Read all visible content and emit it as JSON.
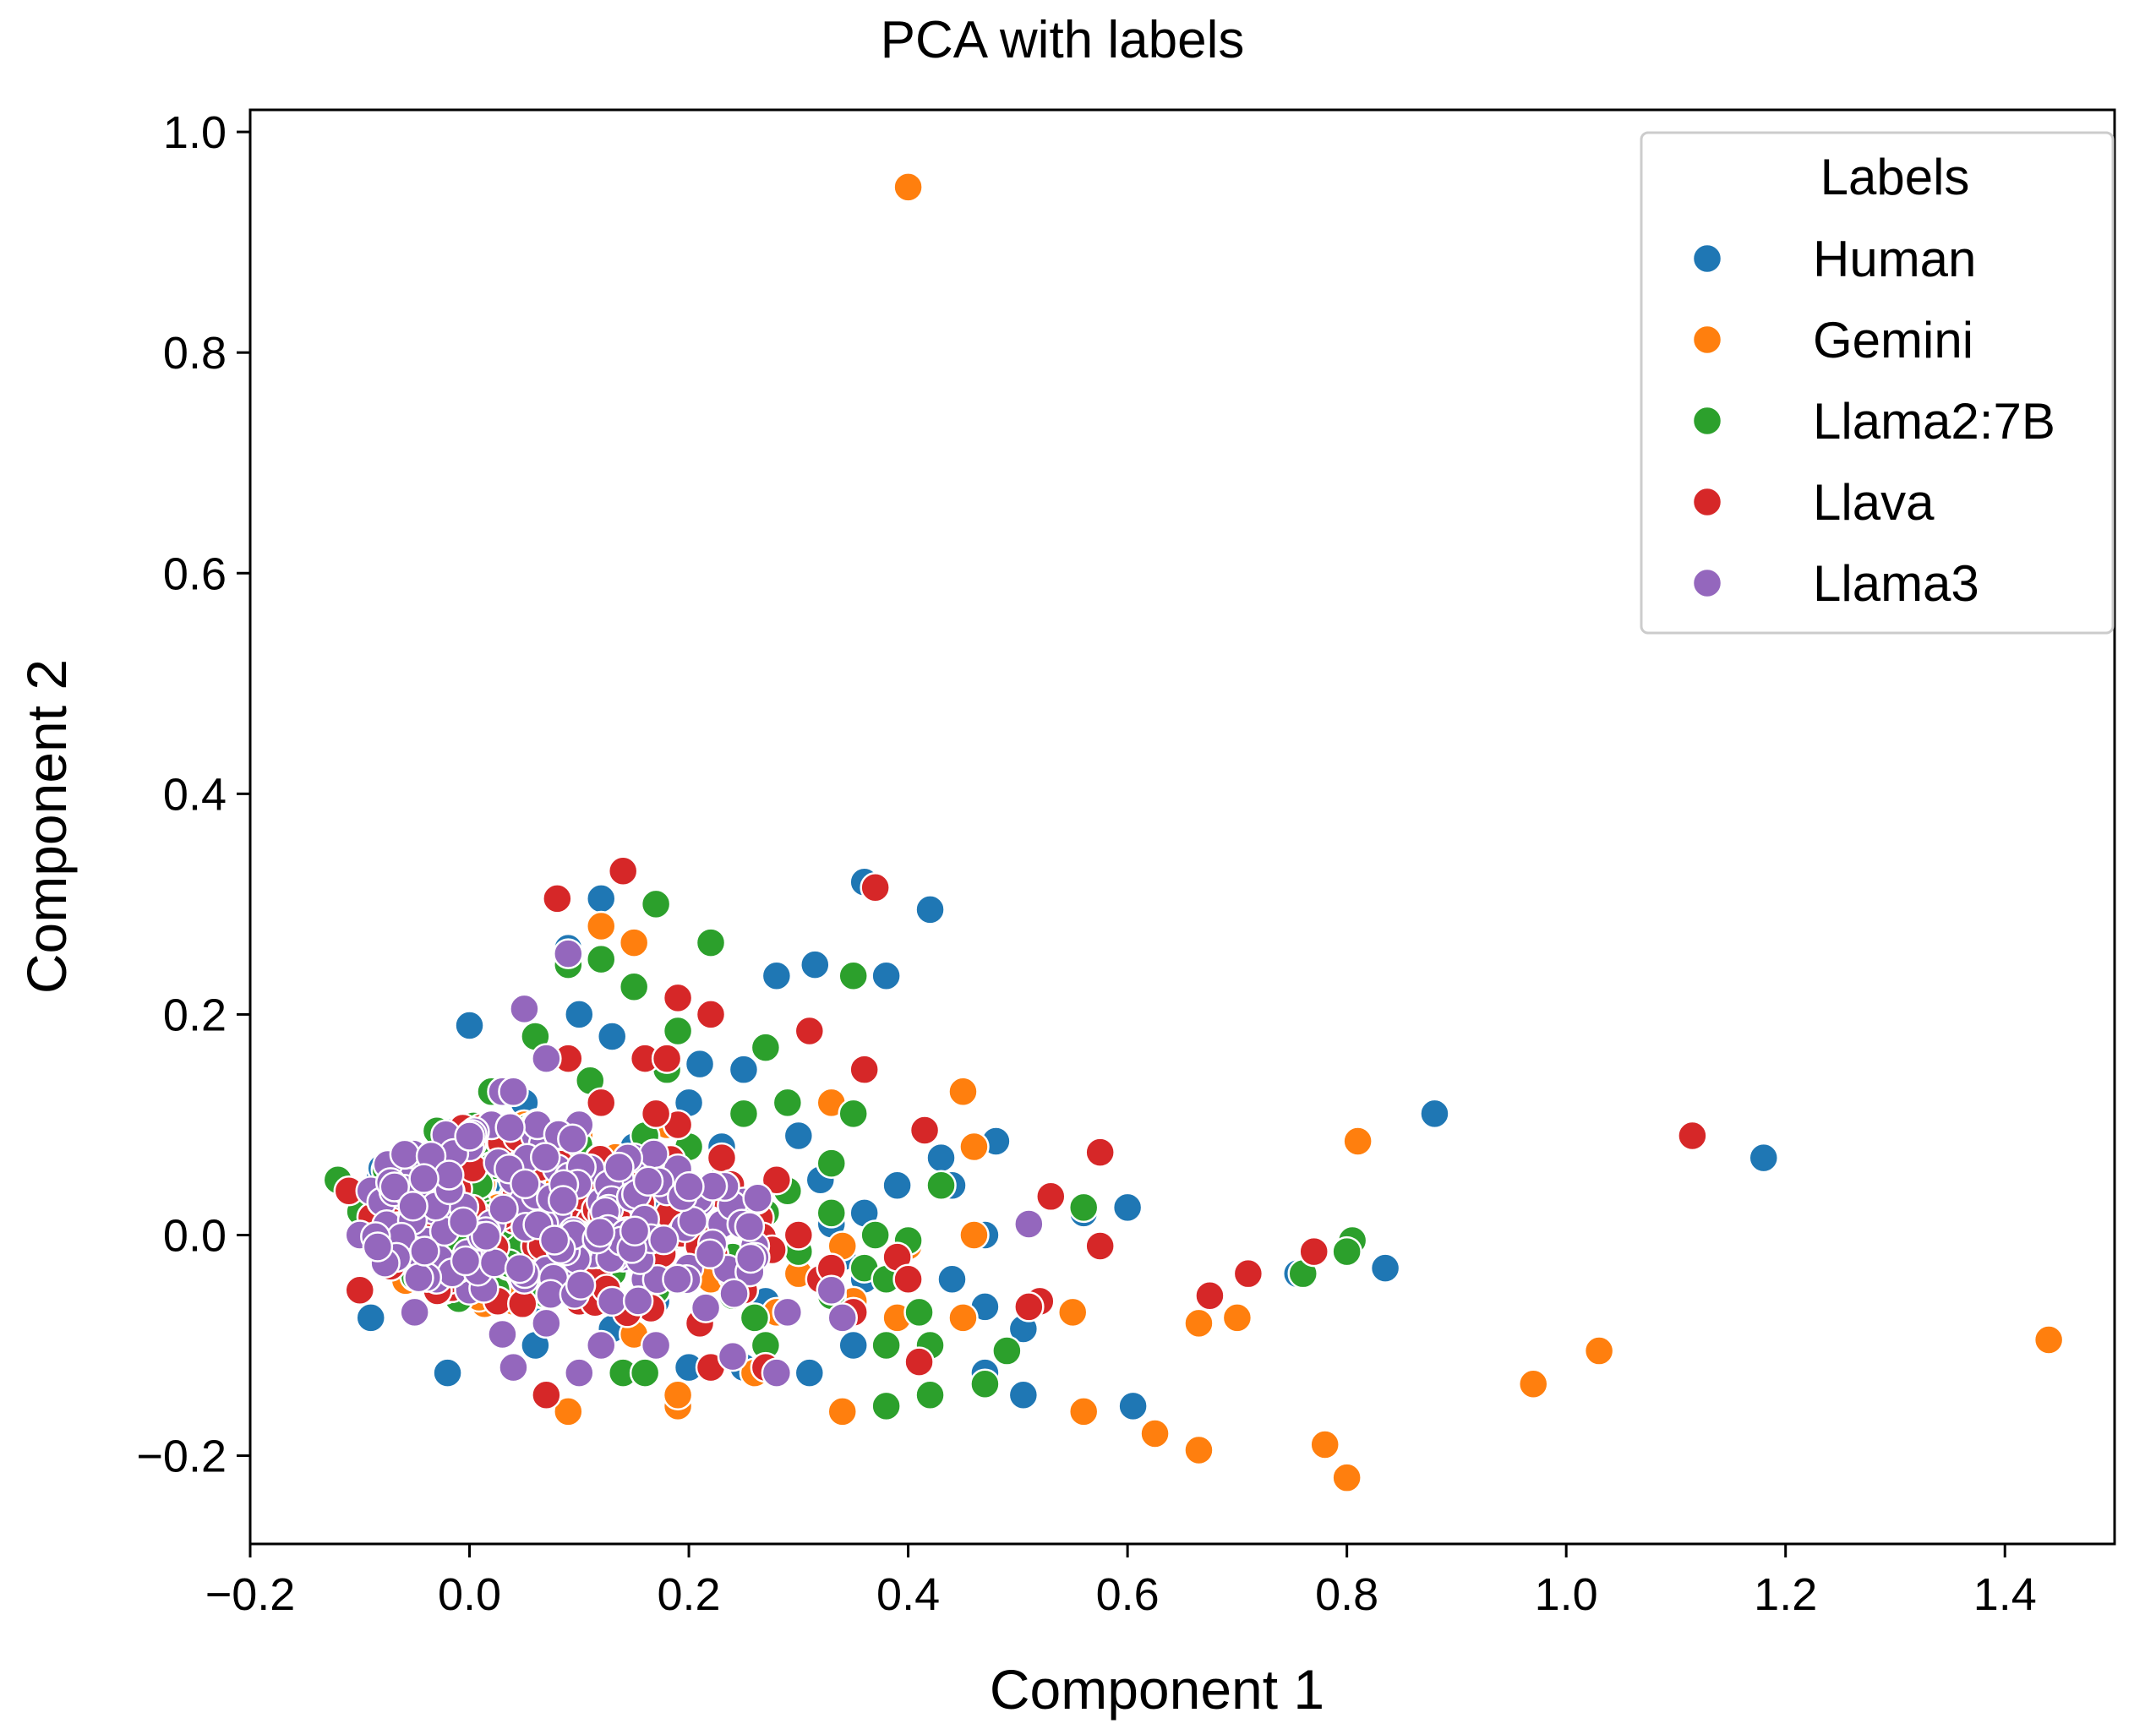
{
  "chart_data": {
    "type": "scatter",
    "title": "PCA with labels",
    "xlabel": "Component 1",
    "ylabel": "Component 2",
    "xlim": [
      -0.2,
      1.5
    ],
    "ylim": [
      -0.28,
      1.02
    ],
    "xticks": [
      -0.2,
      0.0,
      0.2,
      0.4,
      0.6,
      0.8,
      1.0,
      1.2,
      1.4
    ],
    "xtick_labels": [
      "−0.2",
      "0.0",
      "0.2",
      "0.4",
      "0.6",
      "0.8",
      "1.0",
      "1.2",
      "1.4"
    ],
    "yticks": [
      -0.2,
      0.0,
      0.2,
      0.4,
      0.6,
      0.8,
      1.0
    ],
    "ytick_labels": [
      "−0.2",
      "0.0",
      "0.2",
      "0.4",
      "0.6",
      "0.8",
      "1.0"
    ],
    "grid": false,
    "legend": {
      "title": "Labels",
      "placement": "top-right"
    },
    "series": [
      {
        "name": "Human",
        "color": "#1f77b4",
        "points": [
          [
            1.18,
            0.07
          ],
          [
            0.88,
            0.11
          ],
          [
            0.835,
            -0.03
          ],
          [
            0.755,
            -0.035
          ],
          [
            0.605,
            -0.155
          ],
          [
            0.505,
            -0.145
          ],
          [
            0.52,
            -0.06
          ],
          [
            0.505,
            -0.085
          ],
          [
            0.47,
            -0.125
          ],
          [
            0.47,
            -0.065
          ],
          [
            0.48,
            0.085
          ],
          [
            0.47,
            0.0
          ],
          [
            0.44,
            0.045
          ],
          [
            0.43,
            0.07
          ],
          [
            0.42,
            0.295
          ],
          [
            0.36,
            0.32
          ],
          [
            0.38,
            0.235
          ],
          [
            0.315,
            0.245
          ],
          [
            0.28,
            0.235
          ],
          [
            0.3,
            0.09
          ],
          [
            0.32,
            0.05
          ],
          [
            0.33,
            0.01
          ],
          [
            0.36,
            0.02
          ],
          [
            0.36,
            -0.04
          ],
          [
            0.35,
            -0.1
          ],
          [
            0.31,
            -0.125
          ],
          [
            0.25,
            -0.12
          ],
          [
            0.2,
            -0.12
          ],
          [
            0.21,
            0.155
          ],
          [
            0.2,
            0.12
          ],
          [
            0.12,
            0.305
          ],
          [
            0.09,
            0.26
          ],
          [
            0.13,
            0.18
          ],
          [
            0.0,
            0.19
          ],
          [
            -0.02,
            -0.125
          ],
          [
            -0.09,
            -0.075
          ],
          [
            0.1,
            0.2
          ],
          [
            0.05,
            0.12
          ],
          [
            0.15,
            0.08
          ],
          [
            0.23,
            0.08
          ],
          [
            0.26,
            0.03
          ],
          [
            0.44,
            -0.04
          ],
          [
            0.6,
            0.025
          ],
          [
            0.56,
            0.02
          ],
          [
            0.25,
            0.15
          ],
          [
            0.33,
            0.065
          ],
          [
            0.13,
            -0.085
          ],
          [
            0.06,
            -0.1
          ],
          [
            0.17,
            0.03
          ],
          [
            0.22,
            -0.02
          ],
          [
            0.39,
            0.045
          ],
          [
            0.27,
            -0.06
          ],
          [
            0.34,
            -0.02
          ],
          [
            0.17,
            -0.06
          ],
          [
            0.09,
            0.05
          ],
          [
            0.02,
            0.05
          ]
        ]
      },
      {
        "name": "Gemini",
        "color": "#ff7f0e",
        "points": [
          [
            0.4,
            0.95
          ],
          [
            1.44,
            -0.095
          ],
          [
            1.03,
            -0.105
          ],
          [
            0.97,
            -0.135
          ],
          [
            0.81,
            0.085
          ],
          [
            0.8,
            -0.22
          ],
          [
            0.78,
            -0.19
          ],
          [
            0.7,
            -0.075
          ],
          [
            0.665,
            -0.08
          ],
          [
            0.665,
            -0.195
          ],
          [
            0.625,
            -0.18
          ],
          [
            0.56,
            -0.16
          ],
          [
            0.55,
            -0.07
          ],
          [
            0.45,
            0.13
          ],
          [
            0.46,
            0.08
          ],
          [
            0.46,
            0.0
          ],
          [
            0.45,
            -0.075
          ],
          [
            0.4,
            -0.01
          ],
          [
            0.34,
            -0.16
          ],
          [
            0.38,
            -0.155
          ],
          [
            0.39,
            -0.075
          ],
          [
            0.19,
            -0.155
          ],
          [
            0.19,
            -0.145
          ],
          [
            0.26,
            -0.125
          ],
          [
            0.34,
            -0.01
          ],
          [
            0.3,
            0.0
          ],
          [
            0.12,
            0.28
          ],
          [
            0.15,
            0.265
          ],
          [
            0.09,
            -0.16
          ],
          [
            0.11,
            0.02
          ],
          [
            0.06,
            0.07
          ],
          [
            0.22,
            -0.04
          ],
          [
            0.28,
            -0.07
          ],
          [
            -0.05,
            0.06
          ],
          [
            0.3,
            -0.035
          ],
          [
            0.15,
            -0.09
          ],
          [
            0.33,
            0.12
          ],
          [
            0.35,
            -0.06
          ],
          [
            0.24,
            0.02
          ],
          [
            0.18,
            0.1
          ],
          [
            0.1,
            0.09
          ],
          [
            0.04,
            -0.06
          ]
        ]
      },
      {
        "name": "Llama2:7B",
        "color": "#2ca02c",
        "points": [
          [
            0.805,
            -0.005
          ],
          [
            0.8,
            -0.015
          ],
          [
            0.76,
            -0.035
          ],
          [
            0.56,
            0.025
          ],
          [
            0.49,
            -0.105
          ],
          [
            0.47,
            -0.135
          ],
          [
            0.42,
            -0.145
          ],
          [
            0.43,
            0.045
          ],
          [
            0.42,
            -0.1
          ],
          [
            0.4,
            -0.005
          ],
          [
            0.38,
            -0.155
          ],
          [
            0.38,
            -0.1
          ],
          [
            0.37,
            0.0
          ],
          [
            0.35,
            0.235
          ],
          [
            0.35,
            0.11
          ],
          [
            0.33,
            0.065
          ],
          [
            0.27,
            0.17
          ],
          [
            0.29,
            0.12
          ],
          [
            0.22,
            0.265
          ],
          [
            0.17,
            0.3
          ],
          [
            0.15,
            0.225
          ],
          [
            0.14,
            -0.125
          ],
          [
            0.16,
            -0.125
          ],
          [
            0.24,
            -0.055
          ],
          [
            0.26,
            -0.075
          ],
          [
            0.33,
            -0.055
          ],
          [
            0.3,
            -0.015
          ],
          [
            0.19,
            0.185
          ],
          [
            0.18,
            0.15
          ],
          [
            0.12,
            0.25
          ],
          [
            0.09,
            0.245
          ],
          [
            0.06,
            0.18
          ],
          [
            0.02,
            0.13
          ],
          [
            -0.03,
            0.095
          ],
          [
            -0.12,
            0.05
          ],
          [
            -0.1,
            0.02
          ],
          [
            0.2,
            0.08
          ],
          [
            0.23,
            0.05
          ],
          [
            0.27,
            0.02
          ],
          [
            0.16,
            0.09
          ],
          [
            0.13,
            0.04
          ],
          [
            0.21,
            -0.08
          ],
          [
            0.29,
            0.04
          ],
          [
            0.36,
            -0.03
          ],
          [
            0.41,
            -0.07
          ],
          [
            0.25,
            0.11
          ],
          [
            0.17,
            -0.05
          ],
          [
            0.06,
            0.1
          ],
          [
            0.11,
            0.14
          ],
          [
            0.33,
            0.02
          ],
          [
            0.24,
            -0.02
          ],
          [
            0.38,
            -0.04
          ],
          [
            0.19,
            0.0
          ],
          [
            0.27,
            -0.1
          ]
        ]
      },
      {
        "name": "Llava",
        "color": "#d62728",
        "points": [
          [
            1.115,
            0.09
          ],
          [
            0.77,
            -0.015
          ],
          [
            0.71,
            -0.035
          ],
          [
            0.675,
            -0.055
          ],
          [
            0.575,
            0.075
          ],
          [
            0.575,
            -0.01
          ],
          [
            0.53,
            0.035
          ],
          [
            0.52,
            -0.06
          ],
          [
            0.51,
            -0.065
          ],
          [
            0.415,
            0.095
          ],
          [
            0.41,
            -0.115
          ],
          [
            0.37,
            0.315
          ],
          [
            0.36,
            0.15
          ],
          [
            0.31,
            0.185
          ],
          [
            0.22,
            0.2
          ],
          [
            0.19,
            0.215
          ],
          [
            0.14,
            0.33
          ],
          [
            0.08,
            0.305
          ],
          [
            0.16,
            0.16
          ],
          [
            0.18,
            0.16
          ],
          [
            0.07,
            -0.145
          ],
          [
            0.28,
            0.05
          ],
          [
            0.3,
            0.0
          ],
          [
            0.25,
            -0.05
          ],
          [
            0.21,
            -0.08
          ],
          [
            0.15,
            0.05
          ],
          [
            -0.1,
            -0.05
          ],
          [
            -0.11,
            0.04
          ],
          [
            0.06,
            0.1
          ],
          [
            0.12,
            0.12
          ],
          [
            0.19,
            0.1
          ],
          [
            0.23,
            0.07
          ],
          [
            0.32,
            -0.04
          ],
          [
            0.39,
            -0.02
          ],
          [
            0.26,
            0.0
          ],
          [
            0.17,
            -0.03
          ],
          [
            0.1,
            -0.06
          ],
          [
            0.2,
            0.03
          ],
          [
            0.14,
            0.01
          ],
          [
            0.24,
            0.04
          ],
          [
            0.29,
            -0.07
          ],
          [
            0.35,
            -0.07
          ],
          [
            0.4,
            -0.04
          ],
          [
            0.05,
            0.04
          ],
          [
            0.09,
            0.16
          ],
          [
            0.27,
            -0.12
          ],
          [
            0.22,
            -0.12
          ],
          [
            0.33,
            -0.03
          ],
          [
            0.17,
            0.11
          ],
          [
            0.12,
            -0.02
          ]
        ]
      },
      {
        "name": "Llama3",
        "color": "#9467bd",
        "points": [
          [
            0.51,
            0.01
          ],
          [
            0.09,
            0.255
          ],
          [
            0.05,
            0.205
          ],
          [
            0.07,
            0.16
          ],
          [
            0.03,
            0.13
          ],
          [
            0.1,
            0.1
          ],
          [
            0.15,
            0.07
          ],
          [
            0.18,
            0.04
          ],
          [
            0.23,
            0.01
          ],
          [
            0.25,
            0.03
          ],
          [
            0.26,
            -0.01
          ],
          [
            0.29,
            -0.07
          ],
          [
            0.33,
            -0.05
          ],
          [
            0.34,
            -0.075
          ],
          [
            0.28,
            -0.125
          ],
          [
            0.24,
            -0.11
          ],
          [
            0.17,
            -0.1
          ],
          [
            0.1,
            -0.125
          ],
          [
            0.04,
            -0.12
          ],
          [
            -0.05,
            -0.07
          ],
          [
            -0.1,
            0.0
          ],
          [
            -0.09,
            0.04
          ],
          [
            -0.06,
            0.07
          ],
          [
            0.0,
            0.08
          ],
          [
            0.04,
            0.05
          ],
          [
            0.08,
            0.02
          ],
          [
            0.12,
            0.03
          ],
          [
            0.14,
            -0.02
          ],
          [
            0.2,
            -0.03
          ],
          [
            0.05,
            -0.04
          ],
          [
            0.01,
            -0.02
          ],
          [
            -0.02,
            0.02
          ],
          [
            0.06,
            0.09
          ],
          [
            0.11,
            0.06
          ],
          [
            -0.07,
            -0.02
          ],
          [
            0.07,
            -0.08
          ],
          [
            0.13,
            -0.06
          ],
          [
            0.02,
            0.1
          ],
          [
            0.19,
            0.06
          ],
          [
            0.1,
            0.0
          ],
          [
            0.0,
            -0.05
          ],
          [
            0.04,
            0.13
          ],
          [
            0.16,
            -0.04
          ],
          [
            0.21,
            0.03
          ],
          [
            -0.08,
            0.03
          ],
          [
            0.03,
            -0.09
          ],
          [
            0.08,
            0.06
          ],
          [
            -0.04,
            0.05
          ],
          [
            0.15,
            0.0
          ],
          [
            0.12,
            -0.1
          ],
          [
            0.09,
            -0.03
          ],
          [
            0.06,
            0.03
          ],
          [
            -0.03,
            -0.04
          ],
          [
            0.02,
            0.01
          ]
        ]
      }
    ]
  }
}
